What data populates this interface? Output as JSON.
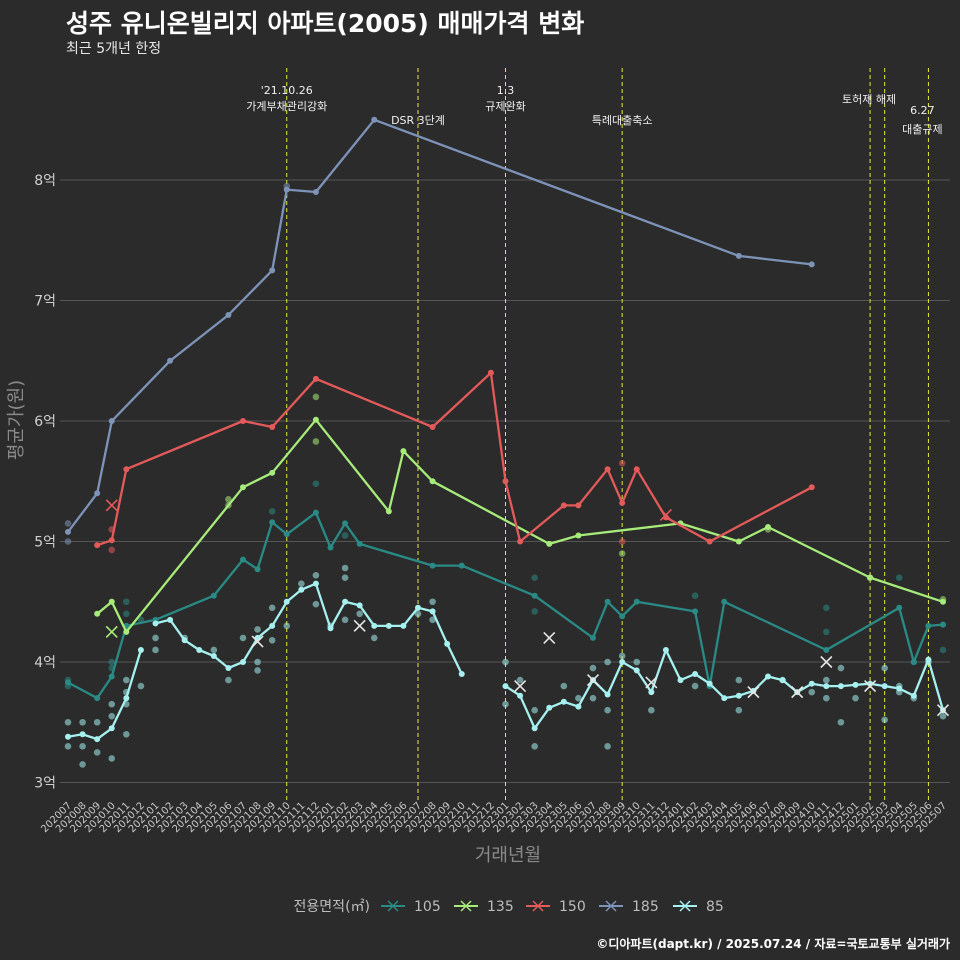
{
  "title": "성주 유니온빌리지 아파트(2005) 매매가격 변화",
  "subtitle": "최근 5개년 한정",
  "caption": "©디아파트(dapt.kr) / 2025.07.24 / 자료=국토교통부 실거래가",
  "colors": {
    "background": "#2b2b2b",
    "grid": "#555555",
    "vline": "#e8e83a"
  },
  "chart_data": {
    "type": "line",
    "xlabel": "거래년월",
    "ylabel": "평균가(원)",
    "legend_title": "전용면적(㎡)",
    "legend_position": "bottom",
    "ylim": [
      2.95,
      9.0
    ],
    "yticks": [
      {
        "v": 3,
        "label": "3억"
      },
      {
        "v": 4,
        "label": "4억"
      },
      {
        "v": 5,
        "label": "5억"
      },
      {
        "v": 6,
        "label": "6억"
      },
      {
        "v": 7,
        "label": "7억"
      },
      {
        "v": 8,
        "label": "8억"
      }
    ],
    "categories": [
      "202007",
      "202008",
      "202009",
      "202010",
      "202011",
      "202012",
      "202101",
      "202102",
      "202103",
      "202104",
      "202105",
      "202106",
      "202107",
      "202108",
      "202109",
      "202110",
      "202111",
      "202112",
      "202201",
      "202202",
      "202203",
      "202204",
      "202205",
      "202206",
      "202207",
      "202208",
      "202209",
      "202210",
      "202211",
      "202212",
      "202301",
      "202302",
      "202303",
      "202304",
      "202305",
      "202306",
      "202307",
      "202308",
      "202309",
      "202310",
      "202311",
      "202312",
      "202401",
      "202402",
      "202403",
      "202404",
      "202405",
      "202406",
      "202407",
      "202408",
      "202409",
      "202410",
      "202411",
      "202412",
      "202501",
      "202502",
      "202503",
      "202504",
      "202505",
      "202506",
      "202507"
    ],
    "annotations": [
      {
        "x": "202110",
        "lines": [
          "'21.10.26",
          "가계부채관리강화"
        ]
      },
      {
        "x": "202207",
        "lines": [
          "DSR 3단계"
        ]
      },
      {
        "x": "202301",
        "lines": [
          "1.3",
          "규제완화"
        ]
      },
      {
        "x": "202309",
        "lines": [
          "특례대출축소"
        ]
      },
      {
        "x": "202502",
        "lines": [
          "토허제 해제"
        ]
      },
      {
        "x": "202503",
        "lines": []
      },
      {
        "x": "202506",
        "lines": [
          "6.27",
          "대출규제"
        ]
      }
    ],
    "series": [
      {
        "name": "105",
        "color": "#2a8a85",
        "points": [
          [
            "202007",
            3.83
          ],
          [
            "202009",
            3.7
          ],
          [
            "202010",
            3.88
          ],
          [
            "202011",
            4.3
          ],
          [
            "202101",
            4.35
          ],
          [
            "202105",
            4.55
          ],
          [
            "202107",
            4.85
          ],
          [
            "202108",
            4.77
          ],
          [
            "202109",
            5.16
          ],
          [
            "202110",
            5.06
          ],
          [
            "202112",
            5.24
          ],
          [
            "202201",
            4.95
          ],
          [
            "202202",
            5.15
          ],
          [
            "202203",
            4.98
          ],
          [
            "202208",
            4.8
          ],
          [
            "202210",
            4.8
          ],
          [
            "202303",
            4.55
          ],
          [
            "202307",
            4.2
          ],
          [
            "202308",
            4.5
          ],
          [
            "202309",
            4.38
          ],
          [
            "202310",
            4.5
          ],
          [
            "202402",
            4.42
          ],
          [
            "202403",
            3.8
          ],
          [
            "202404",
            4.5
          ],
          [
            "202411",
            4.1
          ],
          [
            "202504",
            4.45
          ],
          [
            "202505",
            4.0
          ],
          [
            "202506",
            4.3
          ],
          [
            "202507",
            4.31
          ]
        ],
        "scatter": [
          [
            "202007",
            3.85
          ],
          [
            "202007",
            3.8
          ],
          [
            "202010",
            3.95
          ],
          [
            "202010",
            4.0
          ],
          [
            "202011",
            4.5
          ],
          [
            "202011",
            4.4
          ],
          [
            "202012",
            4.35
          ],
          [
            "202109",
            5.25
          ],
          [
            "202112",
            5.48
          ],
          [
            "202202",
            5.05
          ],
          [
            "202303",
            4.7
          ],
          [
            "202303",
            4.42
          ],
          [
            "202402",
            4.55
          ],
          [
            "202411",
            4.45
          ],
          [
            "202411",
            4.25
          ],
          [
            "202504",
            4.7
          ],
          [
            "202505",
            4.0
          ],
          [
            "202507",
            4.1
          ]
        ],
        "cancels": []
      },
      {
        "name": "135",
        "color": "#a7eb7a",
        "points": [
          [
            "202009",
            4.4
          ],
          [
            "202010",
            4.5
          ],
          [
            "202011",
            4.25
          ],
          [
            "202107",
            5.45
          ],
          [
            "202109",
            5.57
          ],
          [
            "202112",
            6.01
          ],
          [
            "202205",
            5.25
          ],
          [
            "202206",
            5.75
          ],
          [
            "202208",
            5.5
          ],
          [
            "202304",
            4.98
          ],
          [
            "202306",
            5.05
          ],
          [
            "202401",
            5.15
          ],
          [
            "202405",
            5.0
          ],
          [
            "202407",
            5.12
          ],
          [
            "202502",
            4.7
          ],
          [
            "202507",
            4.5
          ]
        ],
        "scatter": [
          [
            "202106",
            5.35
          ],
          [
            "202106",
            5.3
          ],
          [
            "202112",
            6.2
          ],
          [
            "202112",
            5.83
          ],
          [
            "202309",
            4.9
          ],
          [
            "202407",
            5.1
          ],
          [
            "202502",
            4.7
          ],
          [
            "202507",
            4.52
          ]
        ],
        "cancels": [
          [
            "202010",
            4.25
          ]
        ]
      },
      {
        "name": "150",
        "color": "#e35a5a",
        "points": [
          [
            "202009",
            4.97
          ],
          [
            "202010",
            5.01
          ],
          [
            "202011",
            5.6
          ],
          [
            "202107",
            6.0
          ],
          [
            "202109",
            5.95
          ],
          [
            "202112",
            6.35
          ],
          [
            "202208",
            5.95
          ],
          [
            "202212",
            6.4
          ],
          [
            "202301",
            5.5
          ],
          [
            "202302",
            5.0
          ],
          [
            "202305",
            5.3
          ],
          [
            "202306",
            5.3
          ],
          [
            "202308",
            5.6
          ],
          [
            "202309",
            5.32
          ],
          [
            "202310",
            5.6
          ],
          [
            "202312",
            5.2
          ],
          [
            "202403",
            5.0
          ],
          [
            "202410",
            5.45
          ]
        ],
        "scatter": [
          [
            "202010",
            5.1
          ],
          [
            "202010",
            4.93
          ],
          [
            "202309",
            5.65
          ],
          [
            "202309",
            5.0
          ]
        ],
        "cancels": [
          [
            "202010",
            5.3
          ],
          [
            "202312",
            5.22
          ]
        ]
      },
      {
        "name": "185",
        "color": "#7d93b8",
        "points": [
          [
            "202007",
            5.08
          ],
          [
            "202009",
            5.4
          ],
          [
            "202010",
            6.0
          ],
          [
            "202102",
            6.5
          ],
          [
            "202106",
            6.88
          ],
          [
            "202109",
            7.25
          ],
          [
            "202110",
            7.92
          ],
          [
            "202112",
            7.9
          ],
          [
            "202204",
            8.5
          ],
          [
            "202405",
            7.37
          ],
          [
            "202410",
            7.3
          ]
        ],
        "scatter": [
          [
            "202007",
            5.15
          ],
          [
            "202007",
            5.0
          ],
          [
            "202110",
            7.95
          ]
        ],
        "cancels": []
      },
      {
        "name": "85",
        "color": "#a6f0f0",
        "points": [
          [
            "202007",
            3.38
          ],
          [
            "202008",
            3.4
          ],
          [
            "202009",
            3.36
          ],
          [
            "202010",
            3.45
          ],
          [
            "202011",
            3.7
          ],
          [
            "202012",
            4.1
          ],
          null,
          [
            "202101",
            4.32
          ],
          [
            "202102",
            4.35
          ],
          [
            "202103",
            4.18
          ],
          [
            "202104",
            4.1
          ],
          [
            "202105",
            4.05
          ],
          [
            "202106",
            3.95
          ],
          [
            "202107",
            4.0
          ],
          [
            "202108",
            4.2
          ],
          [
            "202109",
            4.3
          ],
          [
            "202110",
            4.5
          ],
          [
            "202111",
            4.6
          ],
          [
            "202112",
            4.65
          ],
          [
            "202201",
            4.28
          ],
          [
            "202202",
            4.5
          ],
          [
            "202203",
            4.47
          ],
          [
            "202204",
            4.3
          ],
          [
            "202205",
            4.3
          ],
          [
            "202206",
            4.3
          ],
          [
            "202207",
            4.45
          ],
          [
            "202208",
            4.42
          ],
          [
            "202209",
            4.15
          ],
          [
            "202210",
            3.9
          ],
          null,
          [
            "202301",
            3.8
          ],
          [
            "202302",
            3.72
          ],
          [
            "202303",
            3.45
          ],
          [
            "202304",
            3.62
          ],
          [
            "202305",
            3.67
          ],
          [
            "202306",
            3.63
          ],
          [
            "202307",
            3.85
          ],
          [
            "202308",
            3.73
          ],
          [
            "202309",
            4.0
          ],
          [
            "202310",
            3.93
          ],
          [
            "202311",
            3.75
          ],
          [
            "202312",
            4.1
          ],
          [
            "202401",
            3.85
          ],
          [
            "202402",
            3.9
          ],
          [
            "202403",
            3.82
          ],
          [
            "202404",
            3.7
          ],
          [
            "202405",
            3.72
          ],
          [
            "202406",
            3.76
          ],
          [
            "202407",
            3.88
          ],
          [
            "202408",
            3.85
          ],
          [
            "202409",
            3.75
          ],
          [
            "202410",
            3.82
          ],
          [
            "202411",
            3.8
          ],
          [
            "202412",
            3.8
          ],
          [
            "202501",
            3.81
          ],
          [
            "202502",
            3.82
          ],
          [
            "202503",
            3.8
          ],
          [
            "202504",
            3.78
          ],
          [
            "202505",
            3.72
          ],
          [
            "202506",
            4.02
          ],
          [
            "202507",
            3.6
          ]
        ],
        "scatter": [
          [
            "202007",
            3.5
          ],
          [
            "202007",
            3.3
          ],
          [
            "202008",
            3.5
          ],
          [
            "202008",
            3.3
          ],
          [
            "202008",
            3.15
          ],
          [
            "202009",
            3.5
          ],
          [
            "202009",
            3.25
          ],
          [
            "202010",
            3.55
          ],
          [
            "202010",
            3.2
          ],
          [
            "202010",
            3.65
          ],
          [
            "202011",
            3.75
          ],
          [
            "202011",
            3.4
          ],
          [
            "202011",
            3.65
          ],
          [
            "202011",
            3.85
          ],
          [
            "202012",
            3.8
          ],
          [
            "202101",
            4.2
          ],
          [
            "202101",
            4.1
          ],
          [
            "202103",
            4.2
          ],
          [
            "202105",
            4.1
          ],
          [
            "202106",
            3.85
          ],
          [
            "202107",
            4.2
          ],
          [
            "202108",
            4.27
          ],
          [
            "202108",
            3.93
          ],
          [
            "202108",
            4.0
          ],
          [
            "202109",
            4.45
          ],
          [
            "202109",
            4.18
          ],
          [
            "202110",
            4.3
          ],
          [
            "202111",
            4.65
          ],
          [
            "202112",
            4.72
          ],
          [
            "202112",
            4.48
          ],
          [
            "202201",
            4.3
          ],
          [
            "202202",
            4.78
          ],
          [
            "202202",
            4.7
          ],
          [
            "202202",
            4.35
          ],
          [
            "202203",
            4.4
          ],
          [
            "202204",
            4.2
          ],
          [
            "202207",
            4.4
          ],
          [
            "202208",
            4.5
          ],
          [
            "202208",
            4.35
          ],
          [
            "202301",
            4.0
          ],
          [
            "202301",
            3.65
          ],
          [
            "202302",
            3.85
          ],
          [
            "202303",
            3.3
          ],
          [
            "202303",
            3.6
          ],
          [
            "202305",
            3.8
          ],
          [
            "202306",
            3.7
          ],
          [
            "202307",
            3.95
          ],
          [
            "202307",
            3.7
          ],
          [
            "202308",
            4.0
          ],
          [
            "202308",
            3.3
          ],
          [
            "202308",
            3.6
          ],
          [
            "202309",
            4.05
          ],
          [
            "202310",
            4.0
          ],
          [
            "202311",
            3.6
          ],
          [
            "202402",
            3.8
          ],
          [
            "202405",
            3.6
          ],
          [
            "202405",
            3.85
          ],
          [
            "202408",
            3.85
          ],
          [
            "202410",
            3.75
          ],
          [
            "202411",
            3.7
          ],
          [
            "202411",
            3.85
          ],
          [
            "202412",
            3.5
          ],
          [
            "202412",
            3.95
          ],
          [
            "202501",
            3.7
          ],
          [
            "202503",
            3.95
          ],
          [
            "202503",
            3.52
          ],
          [
            "202504",
            3.8
          ],
          [
            "202504",
            3.75
          ],
          [
            "202505",
            3.7
          ],
          [
            "202506",
            4.0
          ],
          [
            "202507",
            3.55
          ]
        ],
        "cancels": [
          [
            "202108",
            4.17
          ],
          [
            "202203",
            4.3
          ],
          [
            "202302",
            3.8
          ],
          [
            "202304",
            4.2
          ],
          [
            "202307",
            3.85
          ],
          [
            "202311",
            3.83
          ],
          [
            "202406",
            3.75
          ],
          [
            "202409",
            3.75
          ],
          [
            "202411",
            4.0
          ],
          [
            "202502",
            3.8
          ],
          [
            "202507",
            3.6
          ]
        ]
      }
    ]
  }
}
